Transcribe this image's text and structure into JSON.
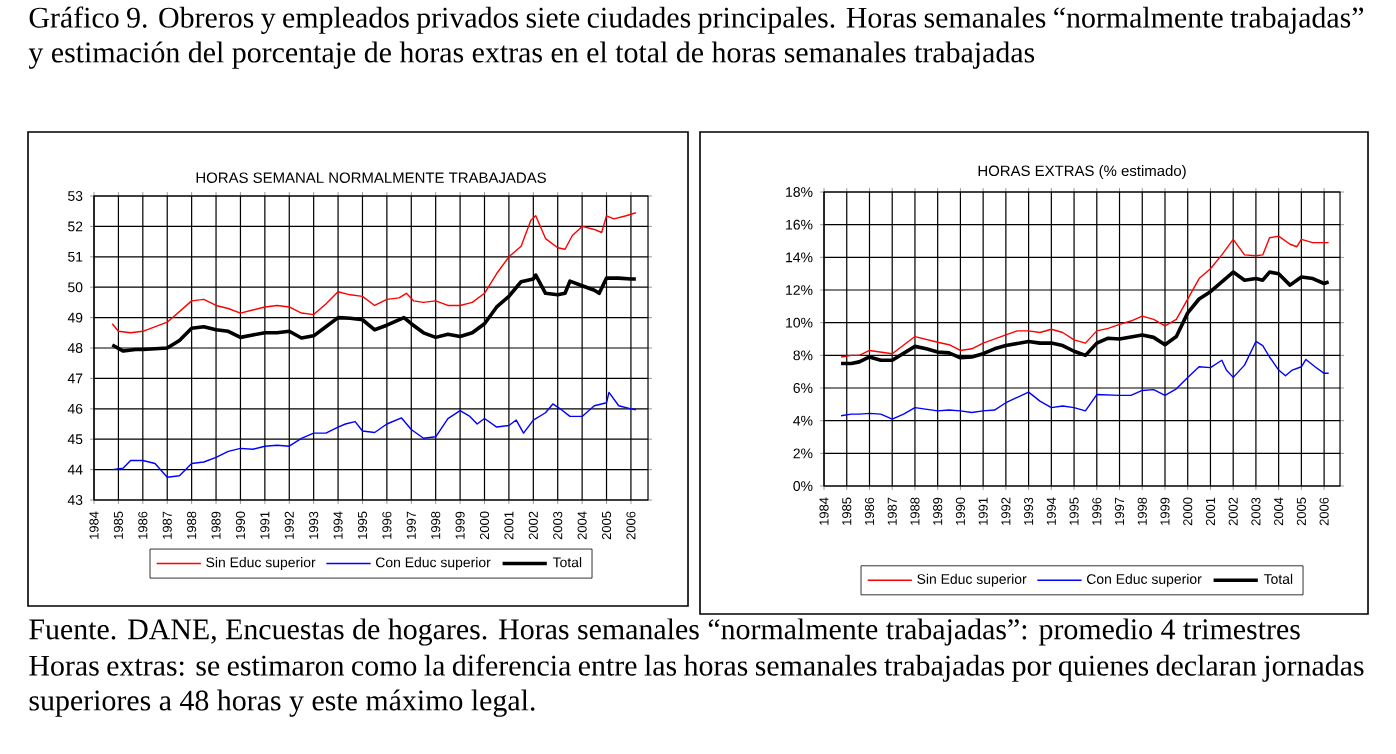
{
  "chart_data": [
    {
      "type": "line",
      "title": "HORAS SEMANAL NORMALMENTE TRABAJADAS",
      "annotations": [
        "Gráfico 9. Obreros y empleados privados siete ciudades principales. Horas semanales “normalmente trabajadas” y estimación del porcentaje de horas extras en el total de horas semanales trabajadas",
        "Fuente. DANE, Encuestas de hogares. Horas semanales “normalmente trabajadas”: promedio 4 trimestres",
        "Horas extras: se estimaron como la diferencia entre las horas semanales trabajadas por quienes declaran jornadas superiores a 48 horas y este máximo legal."
      ],
      "xlim": [
        1984,
        2006.7
      ],
      "xticks": [
        1984,
        1985,
        1986,
        1987,
        1988,
        1989,
        1990,
        1991,
        1992,
        1993,
        1994,
        1995,
        1996,
        1997,
        1998,
        1999,
        2000,
        2001,
        2002,
        2003,
        2004,
        2005,
        2006
      ],
      "ylim": [
        43,
        53
      ],
      "yticks": [
        43,
        44,
        45,
        46,
        47,
        48,
        49,
        50,
        51,
        52,
        53
      ],
      "grid": true,
      "legend": "bottom",
      "series": [
        {
          "name": "Sin Educ superior",
          "color": "#ff0000",
          "x": [
            1984.75,
            1985.0,
            1985.5,
            1986.0,
            1987.0,
            1987.5,
            1988.0,
            1988.5,
            1989.0,
            1989.5,
            1990.0,
            1990.5,
            1991.0,
            1991.5,
            1992.0,
            1992.5,
            1993.0,
            1993.5,
            1994.0,
            1994.5,
            1995.0,
            1995.5,
            1996.0,
            1996.5,
            1996.8,
            1997.1,
            1997.5,
            1998.0,
            1998.5,
            1999.0,
            1999.5,
            2000.0,
            2000.5,
            2001.0,
            2001.5,
            2001.9,
            2002.1,
            2002.5,
            2003.0,
            2003.3,
            2003.6,
            2004.0,
            2004.5,
            2004.8,
            2005.0,
            2005.3,
            2005.8,
            2006.2
          ],
          "values": [
            48.8,
            48.55,
            48.5,
            48.55,
            48.85,
            49.2,
            49.55,
            49.6,
            49.4,
            49.3,
            49.15,
            49.25,
            49.35,
            49.4,
            49.35,
            49.15,
            49.1,
            49.45,
            49.85,
            49.75,
            49.7,
            49.4,
            49.6,
            49.65,
            49.8,
            49.55,
            49.5,
            49.55,
            49.4,
            49.4,
            49.5,
            49.8,
            50.45,
            51.0,
            51.35,
            52.2,
            52.35,
            51.6,
            51.3,
            51.25,
            51.7,
            52.0,
            51.9,
            51.8,
            52.35,
            52.25,
            52.35,
            52.45
          ]
        },
        {
          "name": "Con Educ superior",
          "color": "#0000ff",
          "x": [
            1984.75,
            1985.2,
            1985.5,
            1986.0,
            1986.5,
            1987.0,
            1987.5,
            1988.0,
            1988.5,
            1989.0,
            1989.5,
            1990.0,
            1990.5,
            1991.0,
            1991.5,
            1992.0,
            1992.5,
            1993.0,
            1993.5,
            1994.0,
            1994.3,
            1994.7,
            1995.0,
            1995.5,
            1996.0,
            1996.6,
            1997.0,
            1997.5,
            1998.0,
            1998.5,
            1999.0,
            1999.4,
            1999.7,
            2000.0,
            2000.5,
            2001.0,
            2001.3,
            2001.6,
            2002.0,
            2002.5,
            2002.8,
            2003.1,
            2003.5,
            2004.0,
            2004.5,
            2005.0,
            2005.1,
            2005.5,
            2006.0,
            2006.2
          ],
          "values": [
            44.0,
            44.05,
            44.3,
            44.3,
            44.2,
            43.75,
            43.8,
            44.2,
            44.25,
            44.4,
            44.6,
            44.7,
            44.67,
            44.77,
            44.8,
            44.77,
            45.03,
            45.2,
            45.2,
            45.4,
            45.5,
            45.58,
            45.27,
            45.22,
            45.5,
            45.7,
            45.32,
            45.03,
            45.08,
            45.68,
            45.94,
            45.75,
            45.5,
            45.68,
            45.4,
            45.45,
            45.63,
            45.2,
            45.63,
            45.87,
            46.16,
            46.0,
            45.75,
            45.75,
            46.1,
            46.2,
            46.54,
            46.1,
            46.0,
            45.97
          ]
        },
        {
          "name": "Total",
          "color": "#000000",
          "x": [
            1984.75,
            1985.2,
            1985.7,
            1986.0,
            1987.0,
            1987.5,
            1988.0,
            1988.5,
            1989.0,
            1989.5,
            1990.0,
            1990.5,
            1991.0,
            1991.5,
            1992.0,
            1992.5,
            1993.0,
            1993.5,
            1994.0,
            1994.5,
            1995.0,
            1995.5,
            1996.0,
            1996.7,
            1997.0,
            1997.5,
            1998.0,
            1998.5,
            1999.0,
            1999.5,
            2000.0,
            2000.5,
            2001.0,
            2001.5,
            2002.0,
            2002.1,
            2002.5,
            2003.0,
            2003.3,
            2003.5,
            2004.0,
            2004.5,
            2004.7,
            2005.0,
            2005.5,
            2006.0,
            2006.2
          ],
          "values": [
            48.1,
            47.9,
            47.95,
            47.95,
            48.0,
            48.25,
            48.65,
            48.7,
            48.6,
            48.55,
            48.35,
            48.43,
            48.5,
            48.5,
            48.55,
            48.33,
            48.4,
            48.7,
            49.0,
            48.98,
            48.93,
            48.6,
            48.75,
            49.0,
            48.8,
            48.5,
            48.35,
            48.45,
            48.38,
            48.5,
            48.8,
            49.35,
            49.7,
            50.18,
            50.27,
            50.4,
            49.8,
            49.75,
            49.8,
            50.2,
            50.05,
            49.9,
            49.8,
            50.3,
            50.3,
            50.27,
            50.27
          ]
        }
      ]
    },
    {
      "type": "line",
      "title": "HORAS EXTRAS (% estimado)",
      "xlim": [
        1984,
        2006.7
      ],
      "xticks": [
        1984,
        1985,
        1986,
        1987,
        1988,
        1989,
        1990,
        1991,
        1992,
        1993,
        1994,
        1995,
        1996,
        1997,
        1998,
        1999,
        2000,
        2001,
        2002,
        2003,
        2004,
        2005,
        2006
      ],
      "ylim": [
        0,
        18
      ],
      "yticks": [
        {
          "value": 0,
          "label": "0%"
        },
        {
          "value": 2,
          "label": "2%"
        },
        {
          "value": 4,
          "label": "4%"
        },
        {
          "value": 6,
          "label": "6%"
        },
        {
          "value": 8,
          "label": "8%"
        },
        {
          "value": 10,
          "label": "10%"
        },
        {
          "value": 12,
          "label": "12%"
        },
        {
          "value": 14,
          "label": "14%"
        },
        {
          "value": 16,
          "label": "16%"
        },
        {
          "value": 18,
          "label": "18%"
        }
      ],
      "grid": true,
      "legend": "bottom",
      "series": [
        {
          "name": "Sin Educ superior",
          "color": "#ff0000",
          "x": [
            1984.75,
            1985.2,
            1985.55,
            1986.0,
            1987.0,
            1988.0,
            1989.0,
            1989.5,
            1990.0,
            1990.5,
            1991.0,
            1992.0,
            1992.5,
            1993.0,
            1993.5,
            1994.0,
            1994.5,
            1995.0,
            1995.5,
            1996.0,
            1996.5,
            1997.0,
            1997.5,
            1998.0,
            1998.5,
            1999.0,
            1999.5,
            2000.0,
            2000.5,
            2001.0,
            2001.5,
            2002.0,
            2002.5,
            2003.0,
            2003.3,
            2003.6,
            2004.0,
            2004.5,
            2004.8,
            2005.0,
            2005.5,
            2006.0,
            2006.2
          ],
          "values": [
            7.9,
            8.0,
            8.0,
            8.3,
            8.1,
            9.15,
            8.8,
            8.65,
            8.3,
            8.4,
            8.75,
            9.25,
            9.5,
            9.5,
            9.4,
            9.6,
            9.4,
            8.95,
            8.75,
            9.5,
            9.65,
            9.9,
            10.1,
            10.4,
            10.2,
            9.8,
            10.2,
            11.45,
            12.7,
            13.3,
            14.15,
            15.1,
            14.15,
            14.1,
            14.15,
            15.2,
            15.3,
            14.8,
            14.65,
            15.1,
            14.9,
            14.9,
            14.9
          ]
        },
        {
          "name": "Con Educ superior",
          "color": "#0000ff",
          "x": [
            1984.75,
            1985.2,
            1985.55,
            1986.0,
            1986.5,
            1987.0,
            1987.5,
            1988.0,
            1989.0,
            1989.5,
            1990.0,
            1990.5,
            1991.0,
            1991.5,
            1992.0,
            1993.0,
            1993.5,
            1994.0,
            1994.5,
            1995.0,
            1995.5,
            1996.0,
            1997.0,
            1997.5,
            1998.0,
            1998.5,
            1999.0,
            1999.5,
            2000.0,
            2000.5,
            2001.0,
            2001.5,
            2001.7,
            2002.0,
            2002.5,
            2003.0,
            2003.3,
            2003.6,
            2004.0,
            2004.3,
            2004.6,
            2005.0,
            2005.2,
            2005.6,
            2006.0,
            2006.2
          ],
          "values": [
            4.3,
            4.4,
            4.4,
            4.45,
            4.4,
            4.1,
            4.4,
            4.8,
            4.6,
            4.65,
            4.6,
            4.5,
            4.6,
            4.65,
            5.1,
            5.75,
            5.2,
            4.8,
            4.9,
            4.8,
            4.6,
            5.6,
            5.55,
            5.55,
            5.85,
            5.9,
            5.55,
            5.95,
            6.65,
            7.3,
            7.25,
            7.7,
            7.1,
            6.65,
            7.4,
            8.85,
            8.6,
            7.9,
            7.1,
            6.75,
            7.1,
            7.3,
            7.75,
            7.3,
            6.9,
            6.9
          ]
        },
        {
          "name": "Total",
          "color": "#000000",
          "x": [
            1984.75,
            1985.2,
            1985.55,
            1986.0,
            1986.5,
            1987.0,
            1988.0,
            1988.5,
            1989.0,
            1989.5,
            1990.0,
            1990.5,
            1991.0,
            1991.5,
            1992.0,
            1993.0,
            1993.5,
            1994.0,
            1994.5,
            1995.0,
            1995.5,
            1996.0,
            1996.5,
            1997.0,
            1998.0,
            1998.5,
            1999.0,
            1999.5,
            2000.0,
            2000.5,
            2001.0,
            2001.5,
            2002.0,
            2002.5,
            2003.0,
            2003.3,
            2003.6,
            2004.0,
            2004.5,
            2005.0,
            2005.5,
            2006.0,
            2006.2
          ],
          "values": [
            7.5,
            7.5,
            7.6,
            7.9,
            7.7,
            7.7,
            8.55,
            8.4,
            8.2,
            8.15,
            7.85,
            7.9,
            8.1,
            8.4,
            8.6,
            8.85,
            8.75,
            8.75,
            8.6,
            8.25,
            8.0,
            8.75,
            9.05,
            9.0,
            9.25,
            9.1,
            8.65,
            9.15,
            10.6,
            11.45,
            11.9,
            12.5,
            13.1,
            12.6,
            12.7,
            12.6,
            13.1,
            13.0,
            12.3,
            12.8,
            12.7,
            12.4,
            12.5
          ]
        }
      ]
    }
  ]
}
